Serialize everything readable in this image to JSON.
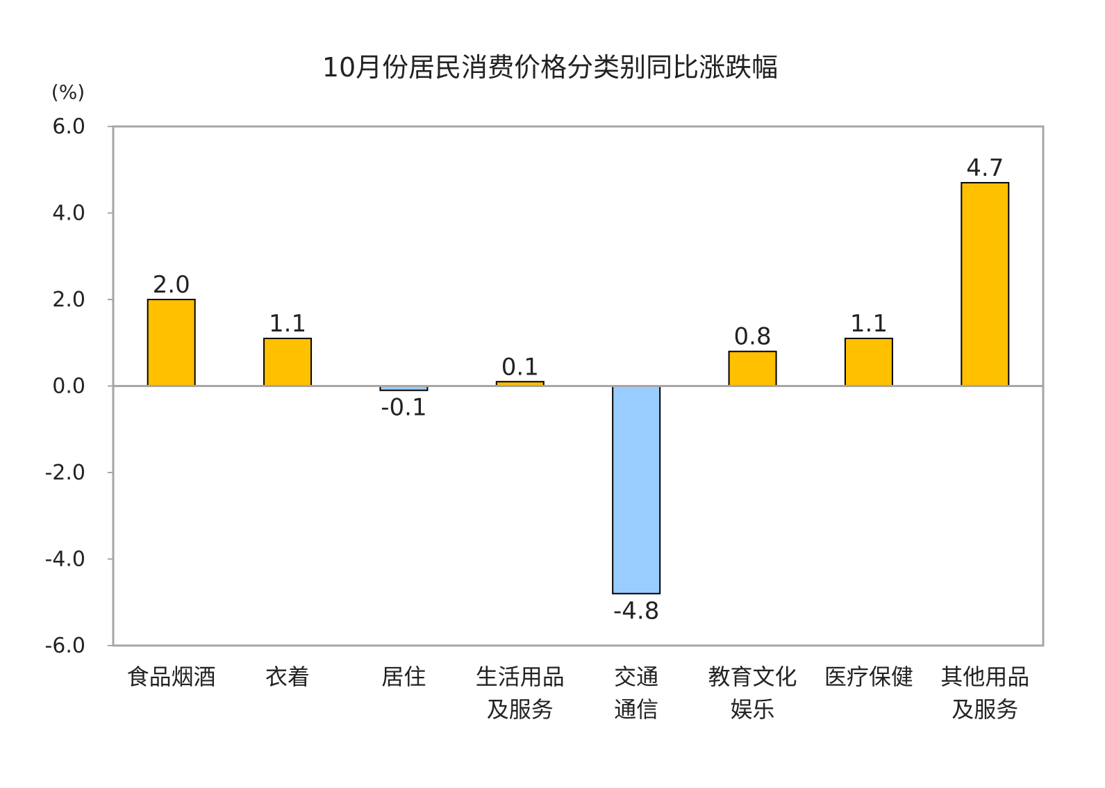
{
  "chart_data": {
    "type": "bar",
    "title": "10月份居民消费价格分类别同比涨跌幅",
    "ylabel": "(%)",
    "xlabel": "",
    "ylim": [
      -6.0,
      6.0
    ],
    "yticks": [
      "6.0",
      "4.0",
      "2.0",
      "0.0",
      "-2.0",
      "-4.0",
      "-6.0"
    ],
    "ytick_values": [
      6,
      4,
      2,
      0,
      -2,
      -4,
      -6
    ],
    "grid": false,
    "categories": [
      [
        "食品烟酒"
      ],
      [
        "衣着"
      ],
      [
        "居住"
      ],
      [
        "生活用品",
        "及服务"
      ],
      [
        "交通",
        "通信"
      ],
      [
        "教育文化",
        "娱乐"
      ],
      [
        "医疗保健"
      ],
      [
        "其他用品",
        "及服务"
      ]
    ],
    "values": [
      2.0,
      1.1,
      -0.1,
      0.1,
      -4.8,
      0.8,
      1.1,
      4.7
    ],
    "data_labels": [
      "2.0",
      "1.1",
      "-0.1",
      "0.1",
      "-4.8",
      "0.8",
      "1.1",
      "4.7"
    ],
    "colors": {
      "positive": "#FFC000",
      "negative": "#99CCFF",
      "bar_border": "#000000",
      "axis": "#A6A6A6"
    }
  }
}
